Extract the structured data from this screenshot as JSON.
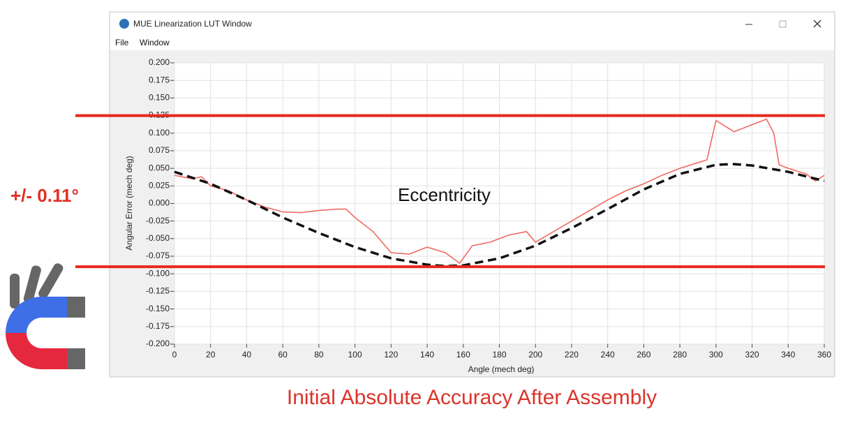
{
  "window": {
    "title": "MUE Linearization LUT Window",
    "menu": [
      "File",
      "Window"
    ]
  },
  "annotations": {
    "tolerance": "+/- 0.11°",
    "caption": "Initial Absolute Accuracy After Assembly"
  },
  "chart_data": {
    "type": "line",
    "xlabel": "Angle (mech deg)",
    "ylabel": "Angular Error (mech deg)",
    "xlim": [
      0,
      360
    ],
    "ylim": [
      -0.2,
      0.2
    ],
    "xticks": [
      0,
      20,
      40,
      60,
      80,
      100,
      120,
      140,
      160,
      180,
      200,
      220,
      240,
      260,
      280,
      300,
      320,
      340,
      360
    ],
    "yticks": [
      {
        "value": -0.2,
        "label": "-0.200"
      },
      {
        "value": -0.175,
        "label": "-0.175"
      },
      {
        "value": -0.15,
        "label": "-0.150"
      },
      {
        "value": -0.125,
        "label": "-0.125"
      },
      {
        "value": -0.1,
        "label": "-0.100"
      },
      {
        "value": -0.075,
        "label": "-0.075"
      },
      {
        "value": -0.05,
        "label": "-0.050"
      },
      {
        "value": -0.025,
        "label": "-0.025"
      },
      {
        "value": 0,
        "label": "0.000"
      },
      {
        "value": 0.025,
        "label": "0.025"
      },
      {
        "value": 0.05,
        "label": "0.050"
      },
      {
        "value": 0.075,
        "label": "0.075"
      },
      {
        "value": 0.1,
        "label": "0.100"
      },
      {
        "value": 0.125,
        "label": "0.125"
      },
      {
        "value": 0.15,
        "label": "0.150"
      },
      {
        "value": 0.175,
        "label": "0.175"
      },
      {
        "value": 0.2,
        "label": "0.200"
      }
    ],
    "grid": true,
    "reference_lines": {
      "values": [
        0.125,
        -0.09
      ],
      "color": "#e8281c"
    },
    "series": [
      {
        "color": "#f06a62",
        "x": [
          0,
          10,
          15,
          20,
          30,
          40,
          50,
          60,
          70,
          80,
          90,
          95,
          100,
          110,
          120,
          130,
          140,
          150,
          158,
          165,
          175,
          185,
          195,
          200,
          210,
          220,
          230,
          240,
          250,
          260,
          270,
          280,
          290,
          295,
          300,
          305,
          310,
          320,
          328,
          332,
          335,
          340,
          350,
          355,
          360
        ],
        "values": [
          0.04,
          0.035,
          0.038,
          0.025,
          0.018,
          0.005,
          -0.005,
          -0.012,
          -0.013,
          -0.01,
          -0.008,
          -0.008,
          -0.02,
          -0.04,
          -0.07,
          -0.072,
          -0.062,
          -0.07,
          -0.085,
          -0.06,
          -0.055,
          -0.045,
          -0.04,
          -0.055,
          -0.04,
          -0.025,
          -0.01,
          0.005,
          0.018,
          0.028,
          0.04,
          0.05,
          0.058,
          0.062,
          0.118,
          0.11,
          0.102,
          0.112,
          0.12,
          0.1,
          0.055,
          0.05,
          0.042,
          0.032,
          0.04
        ]
      },
      {
        "name": "Eccentricity",
        "color": "#111111",
        "dashed": true,
        "x": [
          0,
          20,
          40,
          60,
          80,
          100,
          120,
          140,
          150,
          160,
          180,
          200,
          220,
          240,
          260,
          280,
          300,
          310,
          320,
          340,
          360
        ],
        "values": [
          0.045,
          0.028,
          0.005,
          -0.02,
          -0.042,
          -0.062,
          -0.078,
          -0.087,
          -0.089,
          -0.088,
          -0.078,
          -0.06,
          -0.035,
          -0.008,
          0.02,
          0.042,
          0.055,
          0.056,
          0.054,
          0.045,
          0.032
        ]
      }
    ]
  }
}
